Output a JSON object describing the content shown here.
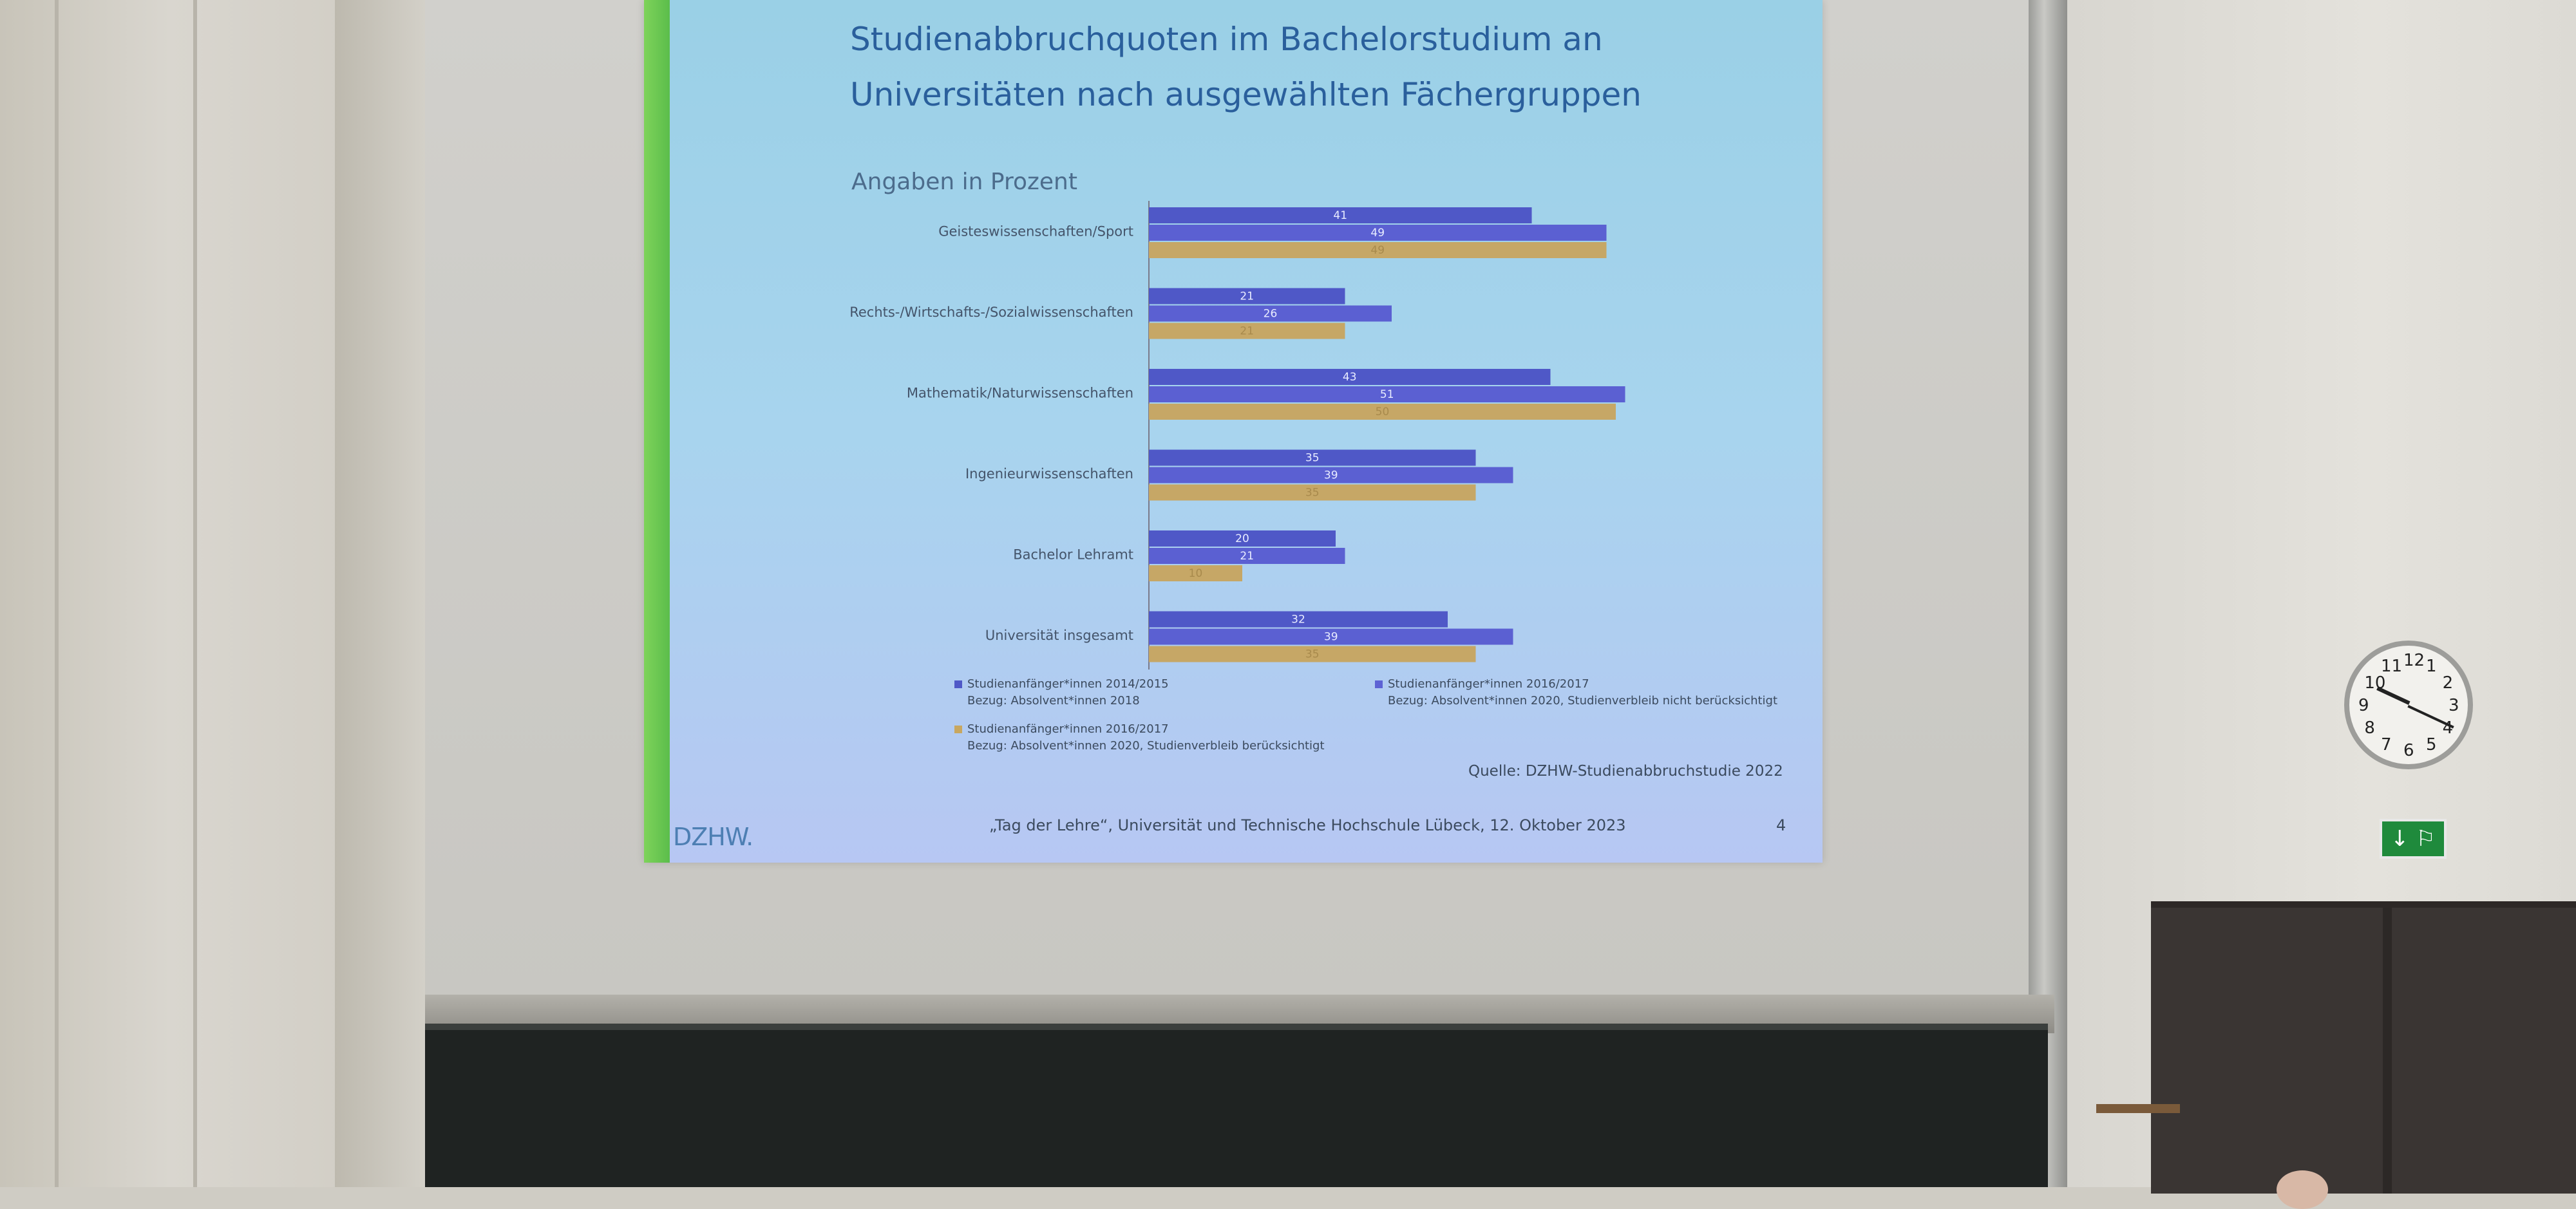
{
  "slide": {
    "title_line1": "Studienabbruchquoten im Bachelorstudium an",
    "title_line2": "Universitäten nach ausgewählten Fächergruppen",
    "subtitle": "Angaben in Prozent",
    "source": "Quelle: DZHW-Studienabbruchstudie 2022",
    "logo": "DZHW.",
    "footer": "„Tag der Lehre“, Universität und Technische Hochschule Lübeck, 12. Oktober 2023",
    "page": "4",
    "legend": [
      {
        "line1": "Studienanfänger*innen 2014/2015",
        "line2": "Bezug: Absolvent*innen 2018",
        "color": "#4f58c7"
      },
      {
        "line1": "Studienanfänger*innen 2016/2017",
        "line2": "Bezug: Absolvent*innen 2020, Studienverbleib nicht berücksichtigt",
        "color": "#5d62d4"
      },
      {
        "line1": "Studienanfänger*innen 2016/2017",
        "line2": "Bezug: Absolvent*innen 2020, Studienverbleib berücksichtigt",
        "color": "#c8a760"
      }
    ]
  },
  "chart_data": {
    "type": "bar",
    "orientation": "horizontal",
    "categories": [
      "Geisteswissenschaften/Sport",
      "Rechts-/Wirtschafts-/Sozialwissenschaften",
      "Mathematik/Naturwissenschaften",
      "Ingenieurwissenschaften",
      "Bachelor Lehramt",
      "Universität insgesamt"
    ],
    "series": [
      {
        "name": "Studienanfänger*innen 2014/2015",
        "values": [
          41,
          21,
          43,
          35,
          20,
          32
        ]
      },
      {
        "name": "Studienanfänger*innen 2016/2017",
        "values": [
          49,
          26,
          51,
          39,
          21,
          39
        ]
      },
      {
        "name": "Studienanfänger*innen 2016/2017",
        "values": [
          49,
          21,
          50,
          35,
          10,
          35
        ]
      }
    ],
    "data_labels": [
      [
        "41",
        "21",
        "43",
        "35",
        "20",
        "32"
      ],
      [
        "49",
        "26",
        "51",
        "39",
        "21",
        "39"
      ],
      [
        "49",
        "21",
        "50",
        "35",
        "10",
        "35"
      ]
    ],
    "colors": [
      "#4f58c7",
      "#5b60d2",
      "#c6a766"
    ],
    "xlim": [
      0,
      55
    ]
  },
  "room": {
    "exit_sign": "↓ ⚐",
    "clock_numbers": [
      "12",
      "1",
      "2",
      "3",
      "4",
      "5",
      "6",
      "7",
      "8",
      "9",
      "10",
      "11"
    ]
  }
}
